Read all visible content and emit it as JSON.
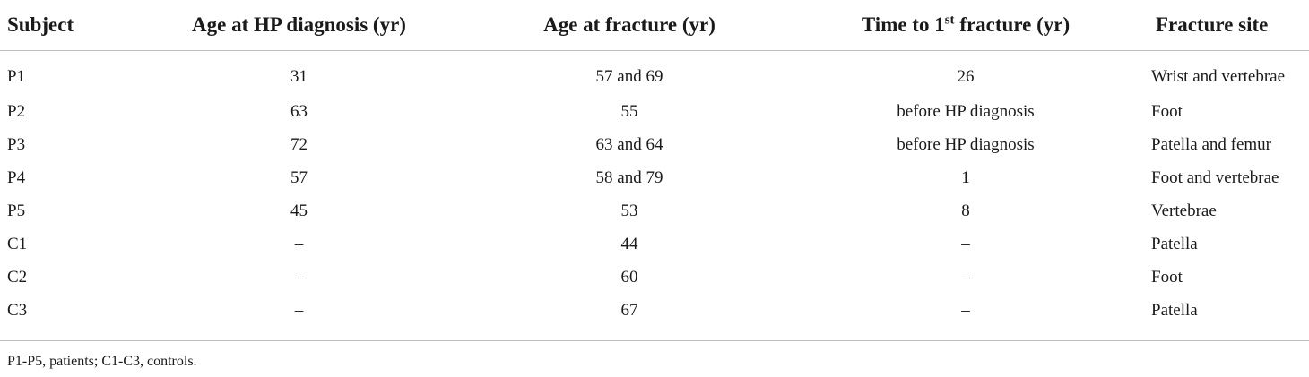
{
  "table": {
    "headers": {
      "subject": "Subject",
      "age_diagnosis": "Age at HP diagnosis (yr)",
      "age_fracture": "Age at fracture (yr)",
      "time_prefix": "Time to 1",
      "time_sup": "st",
      "time_suffix": " fracture (yr)",
      "site": "Fracture site"
    },
    "rows": [
      {
        "subject": "P1",
        "age_diagnosis": "31",
        "age_fracture": "57 and 69",
        "time_to_first": "26",
        "site": "Wrist and vertebrae"
      },
      {
        "subject": "P2",
        "age_diagnosis": "63",
        "age_fracture": "55",
        "time_to_first": "before HP diagnosis",
        "site": "Foot"
      },
      {
        "subject": "P3",
        "age_diagnosis": "72",
        "age_fracture": "63 and 64",
        "time_to_first": "before HP diagnosis",
        "site": "Patella and femur"
      },
      {
        "subject": "P4",
        "age_diagnosis": "57",
        "age_fracture": "58 and 79",
        "time_to_first": "1",
        "site": "Foot and vertebrae"
      },
      {
        "subject": "P5",
        "age_diagnosis": "45",
        "age_fracture": "53",
        "time_to_first": "8",
        "site": "Vertebrae"
      },
      {
        "subject": "C1",
        "age_diagnosis": "–",
        "age_fracture": "44",
        "time_to_first": "–",
        "site": "Patella"
      },
      {
        "subject": "C2",
        "age_diagnosis": "–",
        "age_fracture": "60",
        "time_to_first": "–",
        "site": "Foot"
      },
      {
        "subject": "C3",
        "age_diagnosis": "–",
        "age_fracture": "67",
        "time_to_first": "–",
        "site": "Patella"
      }
    ],
    "footnote": "P1-P5, patients; C1-C3, controls."
  }
}
